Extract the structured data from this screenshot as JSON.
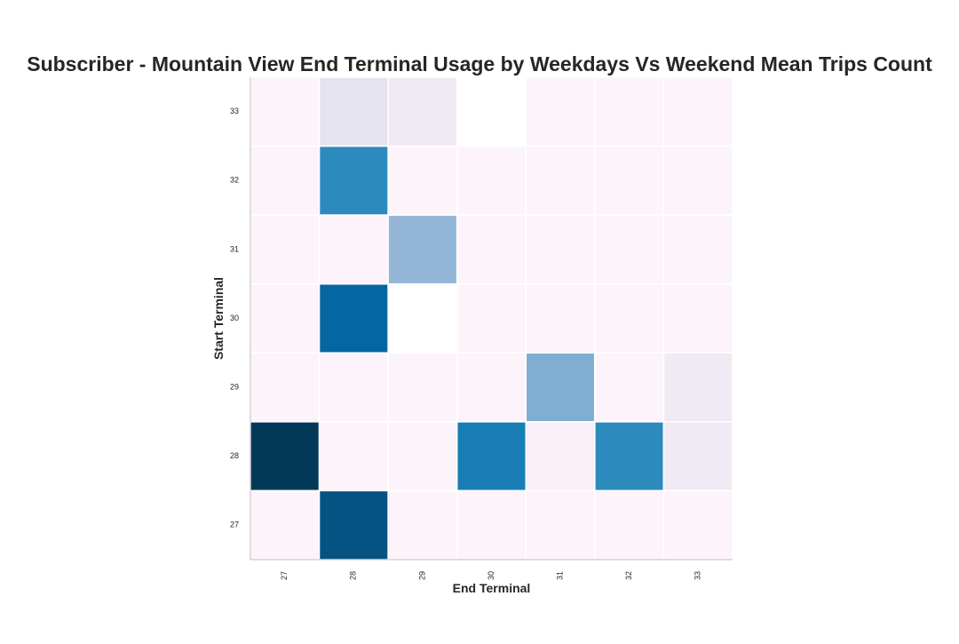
{
  "chart_data": {
    "type": "heatmap",
    "title": "Subscriber - Mountain View End Terminal Usage by Weekdays Vs Weekend Mean Trips Count",
    "xlabel": "End Terminal",
    "ylabel": "Start Terminal",
    "x_categories": [
      "27",
      "28",
      "29",
      "30",
      "31",
      "32",
      "33"
    ],
    "y_categories": [
      "33",
      "32",
      "31",
      "30",
      "29",
      "28",
      "27"
    ],
    "colormap": "PuBu",
    "color_scale_range": [
      0,
      1
    ],
    "legend": "none",
    "grid": false,
    "values": [
      [
        0.02,
        0.15,
        0.1,
        null,
        0.02,
        0.02,
        0.02
      ],
      [
        0.02,
        0.65,
        0.02,
        0.02,
        0.02,
        0.02,
        0.02
      ],
      [
        0.02,
        0.02,
        0.42,
        0.02,
        0.02,
        0.02,
        0.02
      ],
      [
        0.02,
        0.8,
        null,
        0.02,
        0.02,
        0.02,
        0.02
      ],
      [
        0.02,
        0.02,
        0.02,
        0.02,
        0.47,
        0.02,
        0.1
      ],
      [
        1.0,
        0.02,
        0.02,
        0.7,
        0.05,
        0.65,
        0.1
      ],
      [
        0.02,
        0.9,
        0.02,
        0.02,
        0.02,
        0.02,
        0.02
      ]
    ]
  }
}
